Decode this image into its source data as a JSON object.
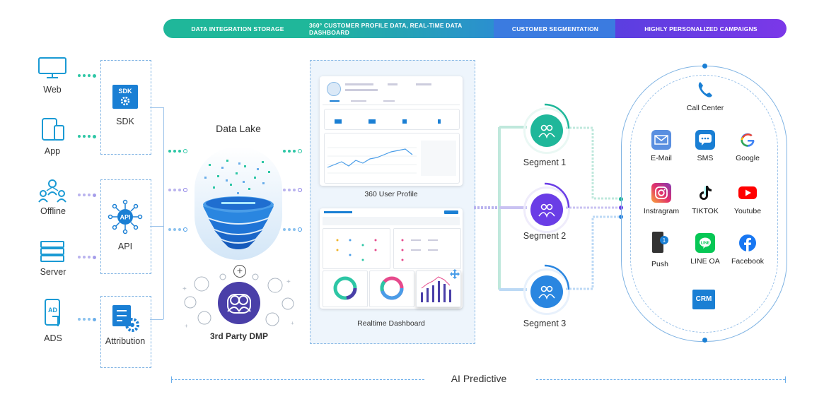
{
  "banner": {
    "items": [
      "DATA INTEGRATION STORAGE",
      "360° CUSTOMER PROFILE DATA, REAL-TIME DATA DASHBOARD",
      "CUSTOMER SEGMENTATION",
      "HIGHLY PERSONALIZED CAMPAIGNS"
    ]
  },
  "sources": {
    "web": "Web",
    "app": "App",
    "offline": "Offline",
    "server": "Server",
    "ads": "ADS"
  },
  "collectors": {
    "sdk_badge": "SDK",
    "sdk": "SDK",
    "api_badge": "API",
    "api": "API",
    "attribution": "Attribution"
  },
  "data_lake": {
    "title": "Data Lake",
    "dmp": "3rd Party DMP"
  },
  "dashboards": {
    "profile": "360 User Profile",
    "realtime": "Realtime Dashboard"
  },
  "segments": [
    "Segment 1",
    "Segment 2",
    "Segment 3"
  ],
  "channels": {
    "call_center": "Call Center",
    "email": "E-Mail",
    "sms": "SMS",
    "google": "Google",
    "instagram": "Instragram",
    "tiktok": "TIKTOK",
    "youtube": "Youtube",
    "push": "Push",
    "line": "LINE OA",
    "facebook": "Facebook",
    "crm": "CRM"
  },
  "footer": {
    "ai": "AI Predictive"
  },
  "colors": {
    "teal": "#1fb79a",
    "blue": "#3b7be0",
    "purple": "#6a3de6",
    "icon_blue": "#1a7fd4",
    "dashed": "#7fb3e3"
  }
}
